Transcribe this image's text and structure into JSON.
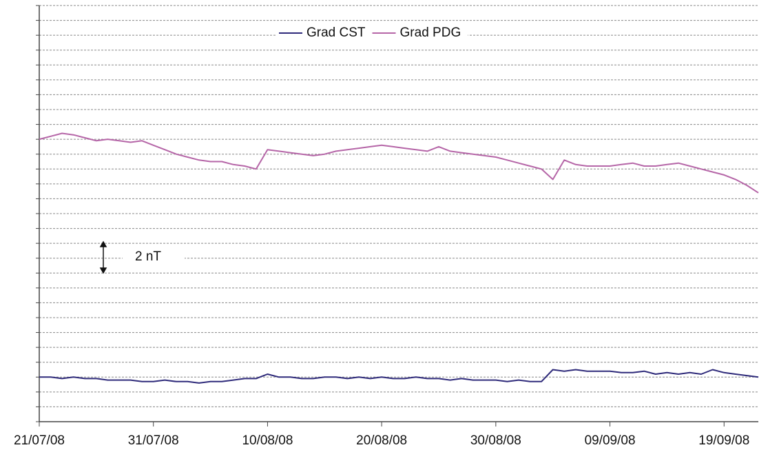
{
  "chart_data": {
    "type": "line",
    "annotation": "2 nT",
    "x": [
      "21/07/08",
      "22/07/08",
      "23/07/08",
      "24/07/08",
      "25/07/08",
      "26/07/08",
      "27/07/08",
      "28/07/08",
      "29/07/08",
      "30/07/08",
      "31/07/08",
      "01/08/08",
      "02/08/08",
      "03/08/08",
      "04/08/08",
      "05/08/08",
      "06/08/08",
      "07/08/08",
      "08/08/08",
      "09/08/08",
      "10/08/08",
      "11/08/08",
      "12/08/08",
      "13/08/08",
      "14/08/08",
      "15/08/08",
      "16/08/08",
      "17/08/08",
      "18/08/08",
      "19/08/08",
      "20/08/08",
      "21/08/08",
      "22/08/08",
      "23/08/08",
      "24/08/08",
      "25/08/08",
      "26/08/08",
      "27/08/08",
      "28/08/08",
      "29/08/08",
      "30/08/08",
      "31/08/08",
      "01/09/08",
      "02/09/08",
      "03/09/08",
      "04/09/08",
      "05/09/08",
      "06/09/08",
      "07/09/08",
      "08/09/08",
      "09/09/08",
      "10/09/08",
      "11/09/08",
      "12/09/08",
      "13/09/08",
      "14/09/08",
      "15/09/08",
      "16/09/08",
      "17/09/08",
      "18/09/08",
      "19/09/08",
      "20/09/08",
      "21/09/08",
      "22/09/08"
    ],
    "series": [
      {
        "name": "Grad CST",
        "color": "#2e2a7a",
        "values": [
          3.0,
          3.0,
          2.9,
          3.0,
          2.9,
          2.9,
          2.8,
          2.8,
          2.8,
          2.7,
          2.7,
          2.8,
          2.7,
          2.7,
          2.6,
          2.7,
          2.7,
          2.8,
          2.9,
          2.9,
          3.2,
          3.0,
          3.0,
          2.9,
          2.9,
          3.0,
          3.0,
          2.9,
          3.0,
          2.9,
          3.0,
          2.9,
          2.9,
          3.0,
          2.9,
          2.9,
          2.8,
          2.9,
          2.8,
          2.8,
          2.8,
          2.7,
          2.8,
          2.7,
          2.7,
          3.5,
          3.4,
          3.5,
          3.4,
          3.4,
          3.4,
          3.3,
          3.3,
          3.4,
          3.2,
          3.3,
          3.2,
          3.3,
          3.2,
          3.5,
          3.3,
          3.2,
          3.1,
          3.0
        ]
      },
      {
        "name": "Grad PDG",
        "color": "#b565a7",
        "values": [
          19.0,
          19.2,
          19.4,
          19.3,
          19.1,
          18.9,
          19.0,
          18.9,
          18.8,
          18.9,
          18.6,
          18.3,
          18.0,
          17.8,
          17.6,
          17.5,
          17.5,
          17.3,
          17.2,
          17.0,
          18.3,
          18.2,
          18.1,
          18.0,
          17.9,
          18.0,
          18.2,
          18.3,
          18.4,
          18.5,
          18.6,
          18.5,
          18.4,
          18.3,
          18.2,
          18.5,
          18.2,
          18.1,
          18.0,
          17.9,
          17.8,
          17.6,
          17.4,
          17.2,
          17.0,
          16.3,
          17.6,
          17.3,
          17.2,
          17.2,
          17.2,
          17.3,
          17.4,
          17.2,
          17.2,
          17.3,
          17.4,
          17.2,
          17.0,
          16.8,
          16.6,
          16.3,
          15.9,
          15.4
        ]
      }
    ],
    "xlim": [
      "21/07/08",
      "22/09/08"
    ],
    "xticks": [
      "21/07/08",
      "31/07/08",
      "10/08/08",
      "20/08/08",
      "30/08/08",
      "09/09/08",
      "19/09/08"
    ],
    "ylim": [
      0,
      28
    ],
    "yticks": [
      0,
      1,
      2,
      3,
      4,
      5,
      6,
      7,
      8,
      9,
      10,
      11,
      12,
      13,
      14,
      15,
      16,
      17,
      18,
      19,
      20,
      21,
      22,
      23,
      24,
      25,
      26,
      27,
      28
    ],
    "grid": true,
    "legend": "top"
  }
}
